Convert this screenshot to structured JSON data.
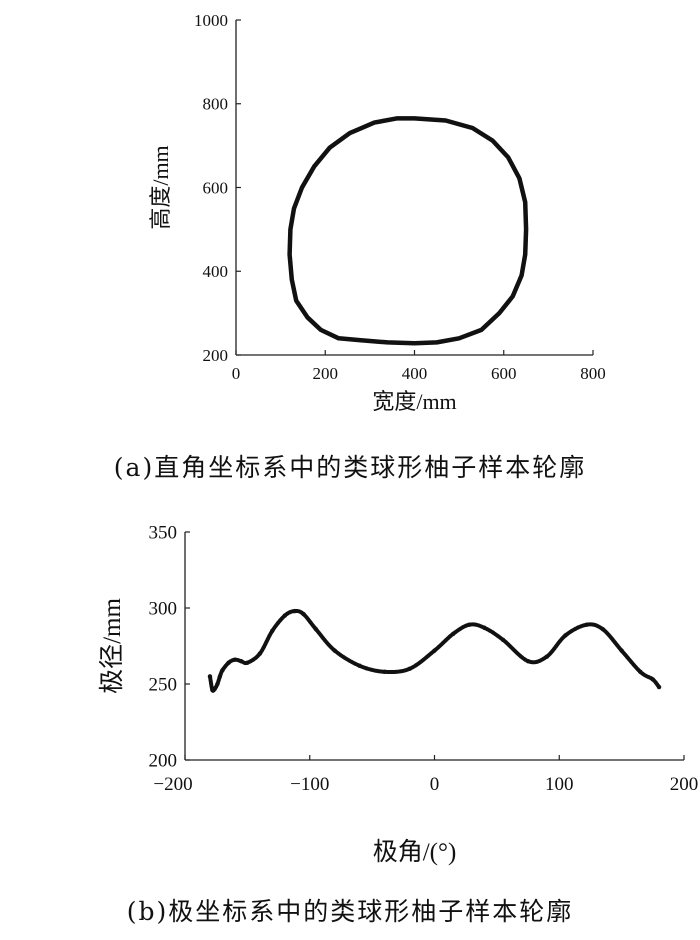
{
  "chart_data": [
    {
      "type": "line",
      "xlabel": "宽度/mm",
      "ylabel": "高度/mm",
      "xlim": [
        0,
        800
      ],
      "ylim": [
        200,
        1000
      ],
      "xticks": [
        "0",
        "200",
        "400",
        "600",
        "800"
      ],
      "yticks": [
        "200",
        "400",
        "600",
        "800",
        "1000"
      ],
      "grid": false,
      "x": [
        400,
        470,
        530,
        575,
        610,
        635,
        648,
        650,
        648,
        640,
        620,
        590,
        550,
        500,
        450,
        400,
        340,
        280,
        230,
        190,
        160,
        135,
        125,
        120,
        122,
        130,
        148,
        175,
        210,
        255,
        310,
        360,
        400
      ],
      "y": [
        765,
        760,
        742,
        712,
        672,
        622,
        565,
        500,
        440,
        390,
        340,
        300,
        260,
        240,
        230,
        228,
        230,
        235,
        240,
        260,
        290,
        330,
        380,
        440,
        500,
        550,
        600,
        650,
        695,
        730,
        755,
        765,
        765
      ]
    },
    {
      "type": "scatter",
      "xlabel": "极角/(°)",
      "ylabel": "极径/mm",
      "xlim": [
        -200,
        200
      ],
      "ylim": [
        200,
        350
      ],
      "xticks": [
        "−200",
        "−100",
        "0",
        "100",
        "200"
      ],
      "yticks": [
        "200",
        "250",
        "300",
        "350"
      ],
      "grid": false,
      "x": [
        -180,
        -178,
        -176,
        -174,
        -172,
        -170,
        -165,
        -160,
        -155,
        -150,
        -140,
        -130,
        -120,
        -112,
        -105,
        -95,
        -80,
        -60,
        -40,
        -20,
        0,
        15,
        28,
        40,
        55,
        75,
        90,
        105,
        122,
        135,
        150,
        165,
        175,
        180
      ],
      "y": [
        255,
        246,
        247,
        250,
        255,
        259,
        264,
        266,
        265,
        264,
        270,
        285,
        295,
        298,
        296,
        286,
        272,
        262,
        258,
        260,
        272,
        283,
        289,
        287,
        279,
        265,
        268,
        282,
        289,
        286,
        272,
        258,
        253,
        248
      ]
    }
  ],
  "captions": {
    "a": "(a)直角坐标系中的类球形柚子样本轮廓",
    "b": "(b)极坐标系中的类球形柚子样本轮廓"
  }
}
